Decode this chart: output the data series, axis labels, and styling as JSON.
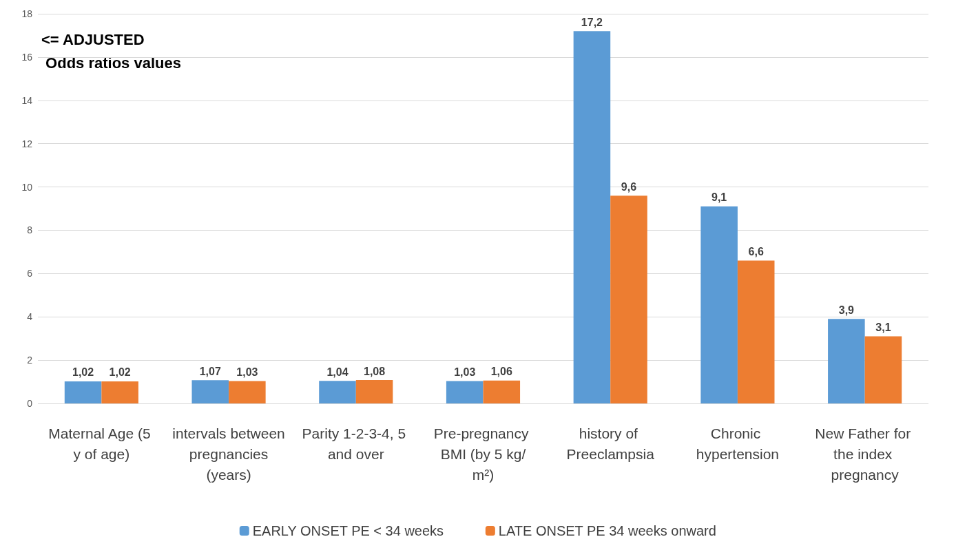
{
  "chart_data": {
    "type": "bar",
    "categories": [
      "Maternal Age (5 y of age)",
      "intervals between pregnancies (years)",
      "Parity 1-2-3-4, 5 and over",
      "Pre-pregnancy BMI (by 5 kg/m²)",
      "history of Preeclampsia",
      "Chronic hypertension",
      "New Father for the index pregnancy"
    ],
    "series": [
      {
        "name": "EARLY ONSET PE < 34 weeks",
        "color": "#5b9bd5",
        "values": [
          1.02,
          1.07,
          1.04,
          1.03,
          17.2,
          9.1,
          3.9
        ],
        "value_labels": [
          "1,02",
          "1,07",
          "1,04",
          "1,03",
          "17,2",
          "9,1",
          "3,9"
        ]
      },
      {
        "name": "LATE ONSET PE 34 weeks onward",
        "color": "#ed7d31",
        "values": [
          1.02,
          1.03,
          1.08,
          1.06,
          9.6,
          6.6,
          3.1
        ],
        "value_labels": [
          "1,02",
          "1,03",
          "1,08",
          "1,06",
          "9,6",
          "6,6",
          "3,1"
        ]
      }
    ],
    "ylim": [
      0,
      18
    ],
    "yticks": [
      0,
      2,
      4,
      6,
      8,
      10,
      12,
      14,
      16,
      18
    ],
    "grid": "y",
    "legend": "bottom",
    "annotations": [
      "<= ADJUSTED\n Odds ratios values"
    ]
  }
}
